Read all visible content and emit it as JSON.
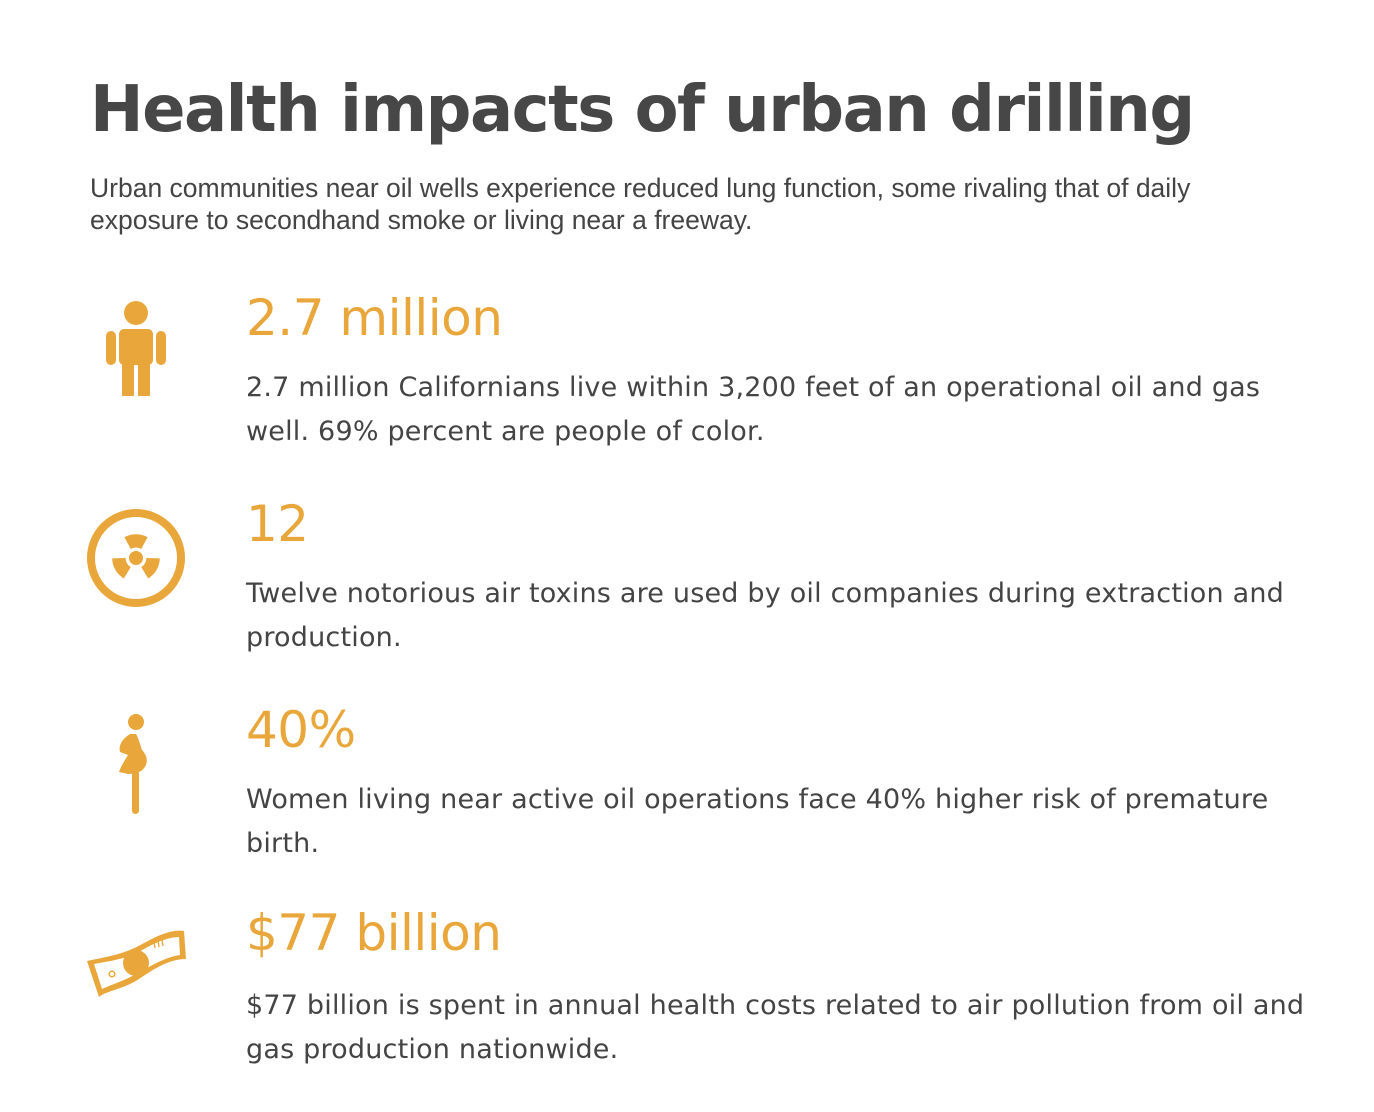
{
  "title": "Health impacts of urban drilling",
  "intro": "Urban communities near oil wells experience reduced lung function, some rivaling that of daily exposure to secondhand smoke or living near a freeway.",
  "accent_color": "#e9a73b",
  "stats": [
    {
      "icon": "person-icon",
      "value": "2.7 million",
      "description": "2.7 million Californians live within 3,200 feet of an operational oil and gas well. 69% percent are people of color."
    },
    {
      "icon": "radiation-icon",
      "value": "12",
      "description": "Twelve notorious air toxins are used by oil companies during extraction and production."
    },
    {
      "icon": "pregnant-woman-icon",
      "value": "40%",
      "description": "Women living near active oil operations face 40% higher risk of premature birth."
    },
    {
      "icon": "money-bill-icon",
      "value": "$77 billion",
      "description": "$77 billion is spent in annual health costs related to air pollution from oil and gas production nationwide."
    }
  ]
}
